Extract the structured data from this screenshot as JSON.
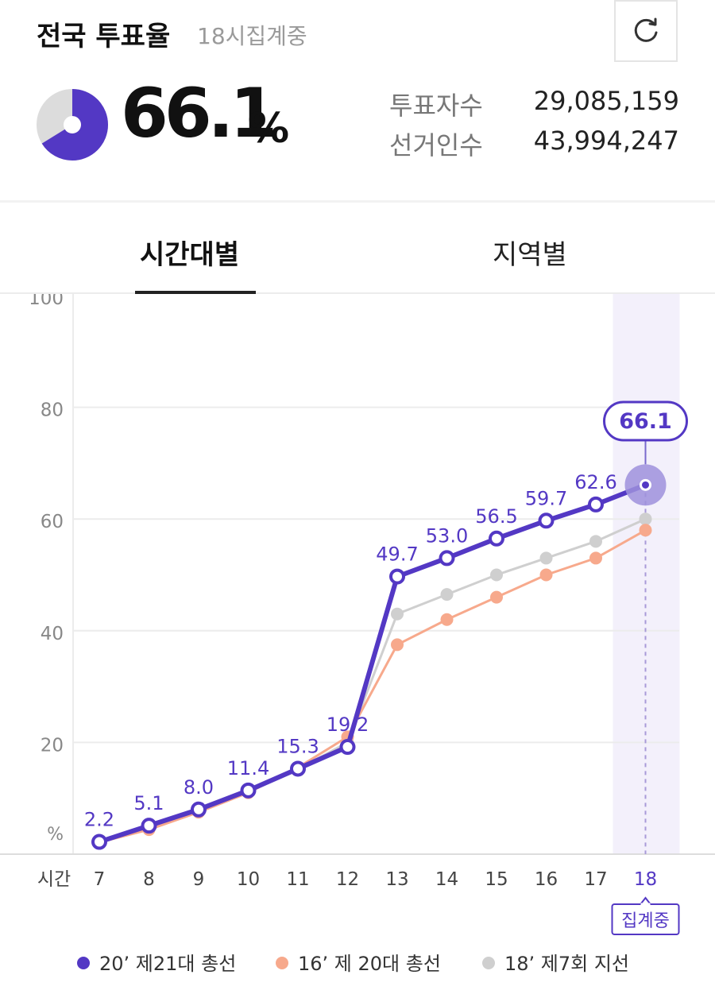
{
  "header": {
    "title": "전국 투표율",
    "subtitle": "18시집계중",
    "turnout_value": "66.1",
    "turnout_unit": "%",
    "turnout_fraction": 0.661,
    "stats": [
      {
        "label": "투표자수",
        "value": "29,085,159"
      },
      {
        "label": "선거인수",
        "value": "43,994,247"
      }
    ]
  },
  "tabs": [
    {
      "label": "시간대별",
      "active": true
    },
    {
      "label": "지역별",
      "active": false
    }
  ],
  "chart_data": {
    "type": "line",
    "xlabel": "시간",
    "ylabel": "%",
    "ylim": [
      0,
      100
    ],
    "yticks": [
      20,
      40,
      60,
      80,
      100
    ],
    "x": [
      7,
      8,
      9,
      10,
      11,
      12,
      13,
      14,
      15,
      16,
      17,
      18
    ],
    "series": [
      {
        "name": "20’ 제21대 총선",
        "color": "#5338c4",
        "values": [
          2.2,
          5.1,
          8.0,
          11.4,
          15.3,
          19.2,
          49.7,
          53.0,
          56.5,
          59.7,
          62.6,
          66.1
        ],
        "labels": [
          "2.2",
          "5.1",
          "8.0",
          "11.4",
          "15.3",
          "19.2",
          "49.7",
          "53.0",
          "56.5",
          "59.7",
          "62.6",
          "66.1"
        ]
      },
      {
        "name": "16’ 제 20대 총선",
        "color": "#f7a98c",
        "values": [
          2.1,
          4.4,
          7.5,
          11.0,
          15.5,
          21.0,
          37.5,
          42.0,
          46.0,
          50.0,
          53.0,
          58.0
        ]
      },
      {
        "name": "18’ 제7회 지선",
        "color": "#cfcfcf",
        "values": [
          2.2,
          4.7,
          7.8,
          11.3,
          15.2,
          20.0,
          43.0,
          46.5,
          50.0,
          53.0,
          56.0,
          60.0
        ]
      }
    ],
    "highlight": {
      "x": 18,
      "label": "66.1",
      "badge": "집계중"
    },
    "legend_position": "bottom"
  }
}
